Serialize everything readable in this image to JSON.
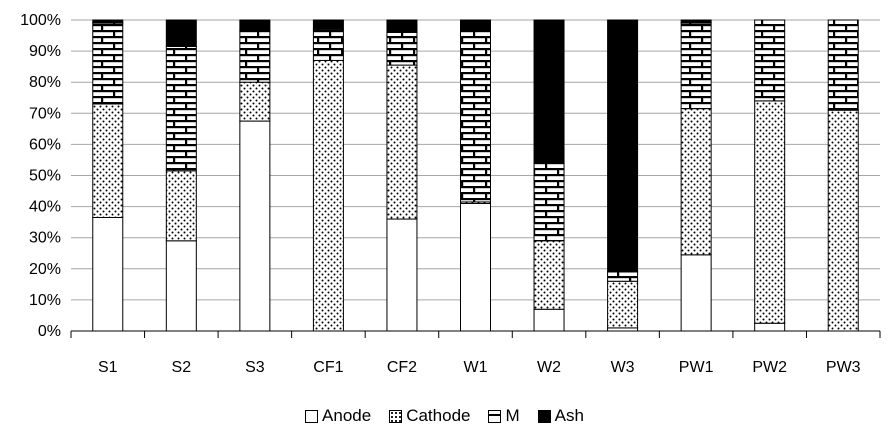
{
  "chart_data": {
    "type": "bar",
    "stacked": "percent",
    "categories": [
      "S1",
      "S2",
      "S3",
      "CF1",
      "CF2",
      "W1",
      "W2",
      "W3",
      "PW1",
      "PW2",
      "PW3"
    ],
    "series": [
      {
        "name": "Anode",
        "pattern": "white",
        "values": [
          36.5,
          29,
          67.5,
          0,
          36,
          41,
          7,
          1,
          24.5,
          2.5,
          0
        ]
      },
      {
        "name": "Cathode",
        "pattern": "dotted",
        "values": [
          36.5,
          22.5,
          12.5,
          87,
          49.5,
          0.5,
          22,
          15,
          47,
          71.5,
          71
        ]
      },
      {
        "name": "M",
        "pattern": "brick",
        "values": [
          26,
          40,
          16.5,
          10,
          10.5,
          55,
          25,
          3,
          27.5,
          26,
          29
        ]
      },
      {
        "name": "Ash",
        "pattern": "black",
        "values": [
          1,
          8.5,
          3.5,
          3,
          4,
          3.5,
          46,
          81,
          1,
          0,
          0
        ]
      }
    ],
    "yticks": [
      "0%",
      "10%",
      "20%",
      "30%",
      "40%",
      "50%",
      "60%",
      "70%",
      "80%",
      "90%",
      "100%"
    ],
    "ylim": [
      0,
      100
    ],
    "grid": true,
    "legend": "bottom",
    "title": "",
    "xlabel": "",
    "ylabel": ""
  }
}
